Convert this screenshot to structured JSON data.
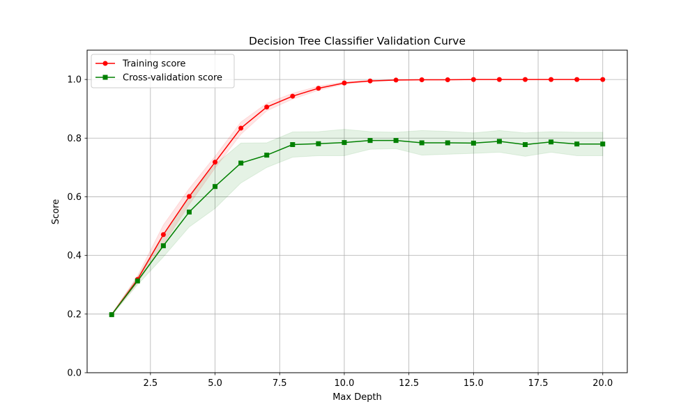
{
  "chart_data": {
    "type": "line",
    "title": "Decision Tree Classifier Validation Curve",
    "xlabel": "Max Depth",
    "ylabel": "Score",
    "xlim": [
      0.05,
      20.95
    ],
    "ylim": [
      0.0,
      1.1
    ],
    "grid": true,
    "legend_position": "upper left",
    "x_ticks": [
      2.5,
      5.0,
      7.5,
      10.0,
      12.5,
      15.0,
      17.5,
      20.0
    ],
    "x_tick_labels": [
      "2.5",
      "5.0",
      "7.5",
      "10.0",
      "12.5",
      "15.0",
      "17.5",
      "20.0"
    ],
    "y_ticks": [
      0.0,
      0.2,
      0.4,
      0.6,
      0.8,
      1.0
    ],
    "y_tick_labels": [
      "0.0",
      "0.2",
      "0.4",
      "0.6",
      "0.8",
      "1.0"
    ],
    "x": [
      1,
      2,
      3,
      4,
      5,
      6,
      7,
      8,
      9,
      10,
      11,
      12,
      13,
      14,
      15,
      16,
      17,
      18,
      19,
      20
    ],
    "series": [
      {
        "name": "Training score",
        "color": "#ff0000",
        "marker": "circle",
        "values": [
          0.198,
          0.318,
          0.471,
          0.601,
          0.718,
          0.834,
          0.906,
          0.943,
          0.97,
          0.988,
          0.995,
          0.998,
          0.999,
          0.999,
          1.0,
          1.0,
          1.0,
          1.0,
          1.0,
          1.0
        ],
        "band_lower": [
          0.196,
          0.306,
          0.438,
          0.574,
          0.698,
          0.813,
          0.893,
          0.933,
          0.963,
          0.984,
          0.993,
          0.997,
          0.998,
          0.999,
          1.0,
          1.0,
          1.0,
          1.0,
          1.0,
          1.0
        ],
        "band_upper": [
          0.2,
          0.33,
          0.504,
          0.628,
          0.738,
          0.855,
          0.919,
          0.953,
          0.977,
          0.992,
          0.997,
          0.999,
          1.0,
          1.0,
          1.0,
          1.0,
          1.0,
          1.0,
          1.0,
          1.0
        ]
      },
      {
        "name": "Cross-validation score",
        "color": "#008000",
        "marker": "square",
        "values": [
          0.198,
          0.313,
          0.433,
          0.548,
          0.635,
          0.715,
          0.742,
          0.778,
          0.781,
          0.785,
          0.792,
          0.792,
          0.784,
          0.784,
          0.783,
          0.789,
          0.778,
          0.787,
          0.78,
          0.78
        ],
        "band_lower": [
          0.195,
          0.3,
          0.395,
          0.497,
          0.56,
          0.647,
          0.7,
          0.735,
          0.74,
          0.74,
          0.762,
          0.764,
          0.742,
          0.745,
          0.748,
          0.752,
          0.738,
          0.752,
          0.74,
          0.74
        ],
        "band_upper": [
          0.201,
          0.326,
          0.471,
          0.599,
          0.71,
          0.783,
          0.784,
          0.821,
          0.822,
          0.83,
          0.822,
          0.82,
          0.826,
          0.823,
          0.818,
          0.826,
          0.818,
          0.822,
          0.82,
          0.82
        ]
      }
    ]
  }
}
